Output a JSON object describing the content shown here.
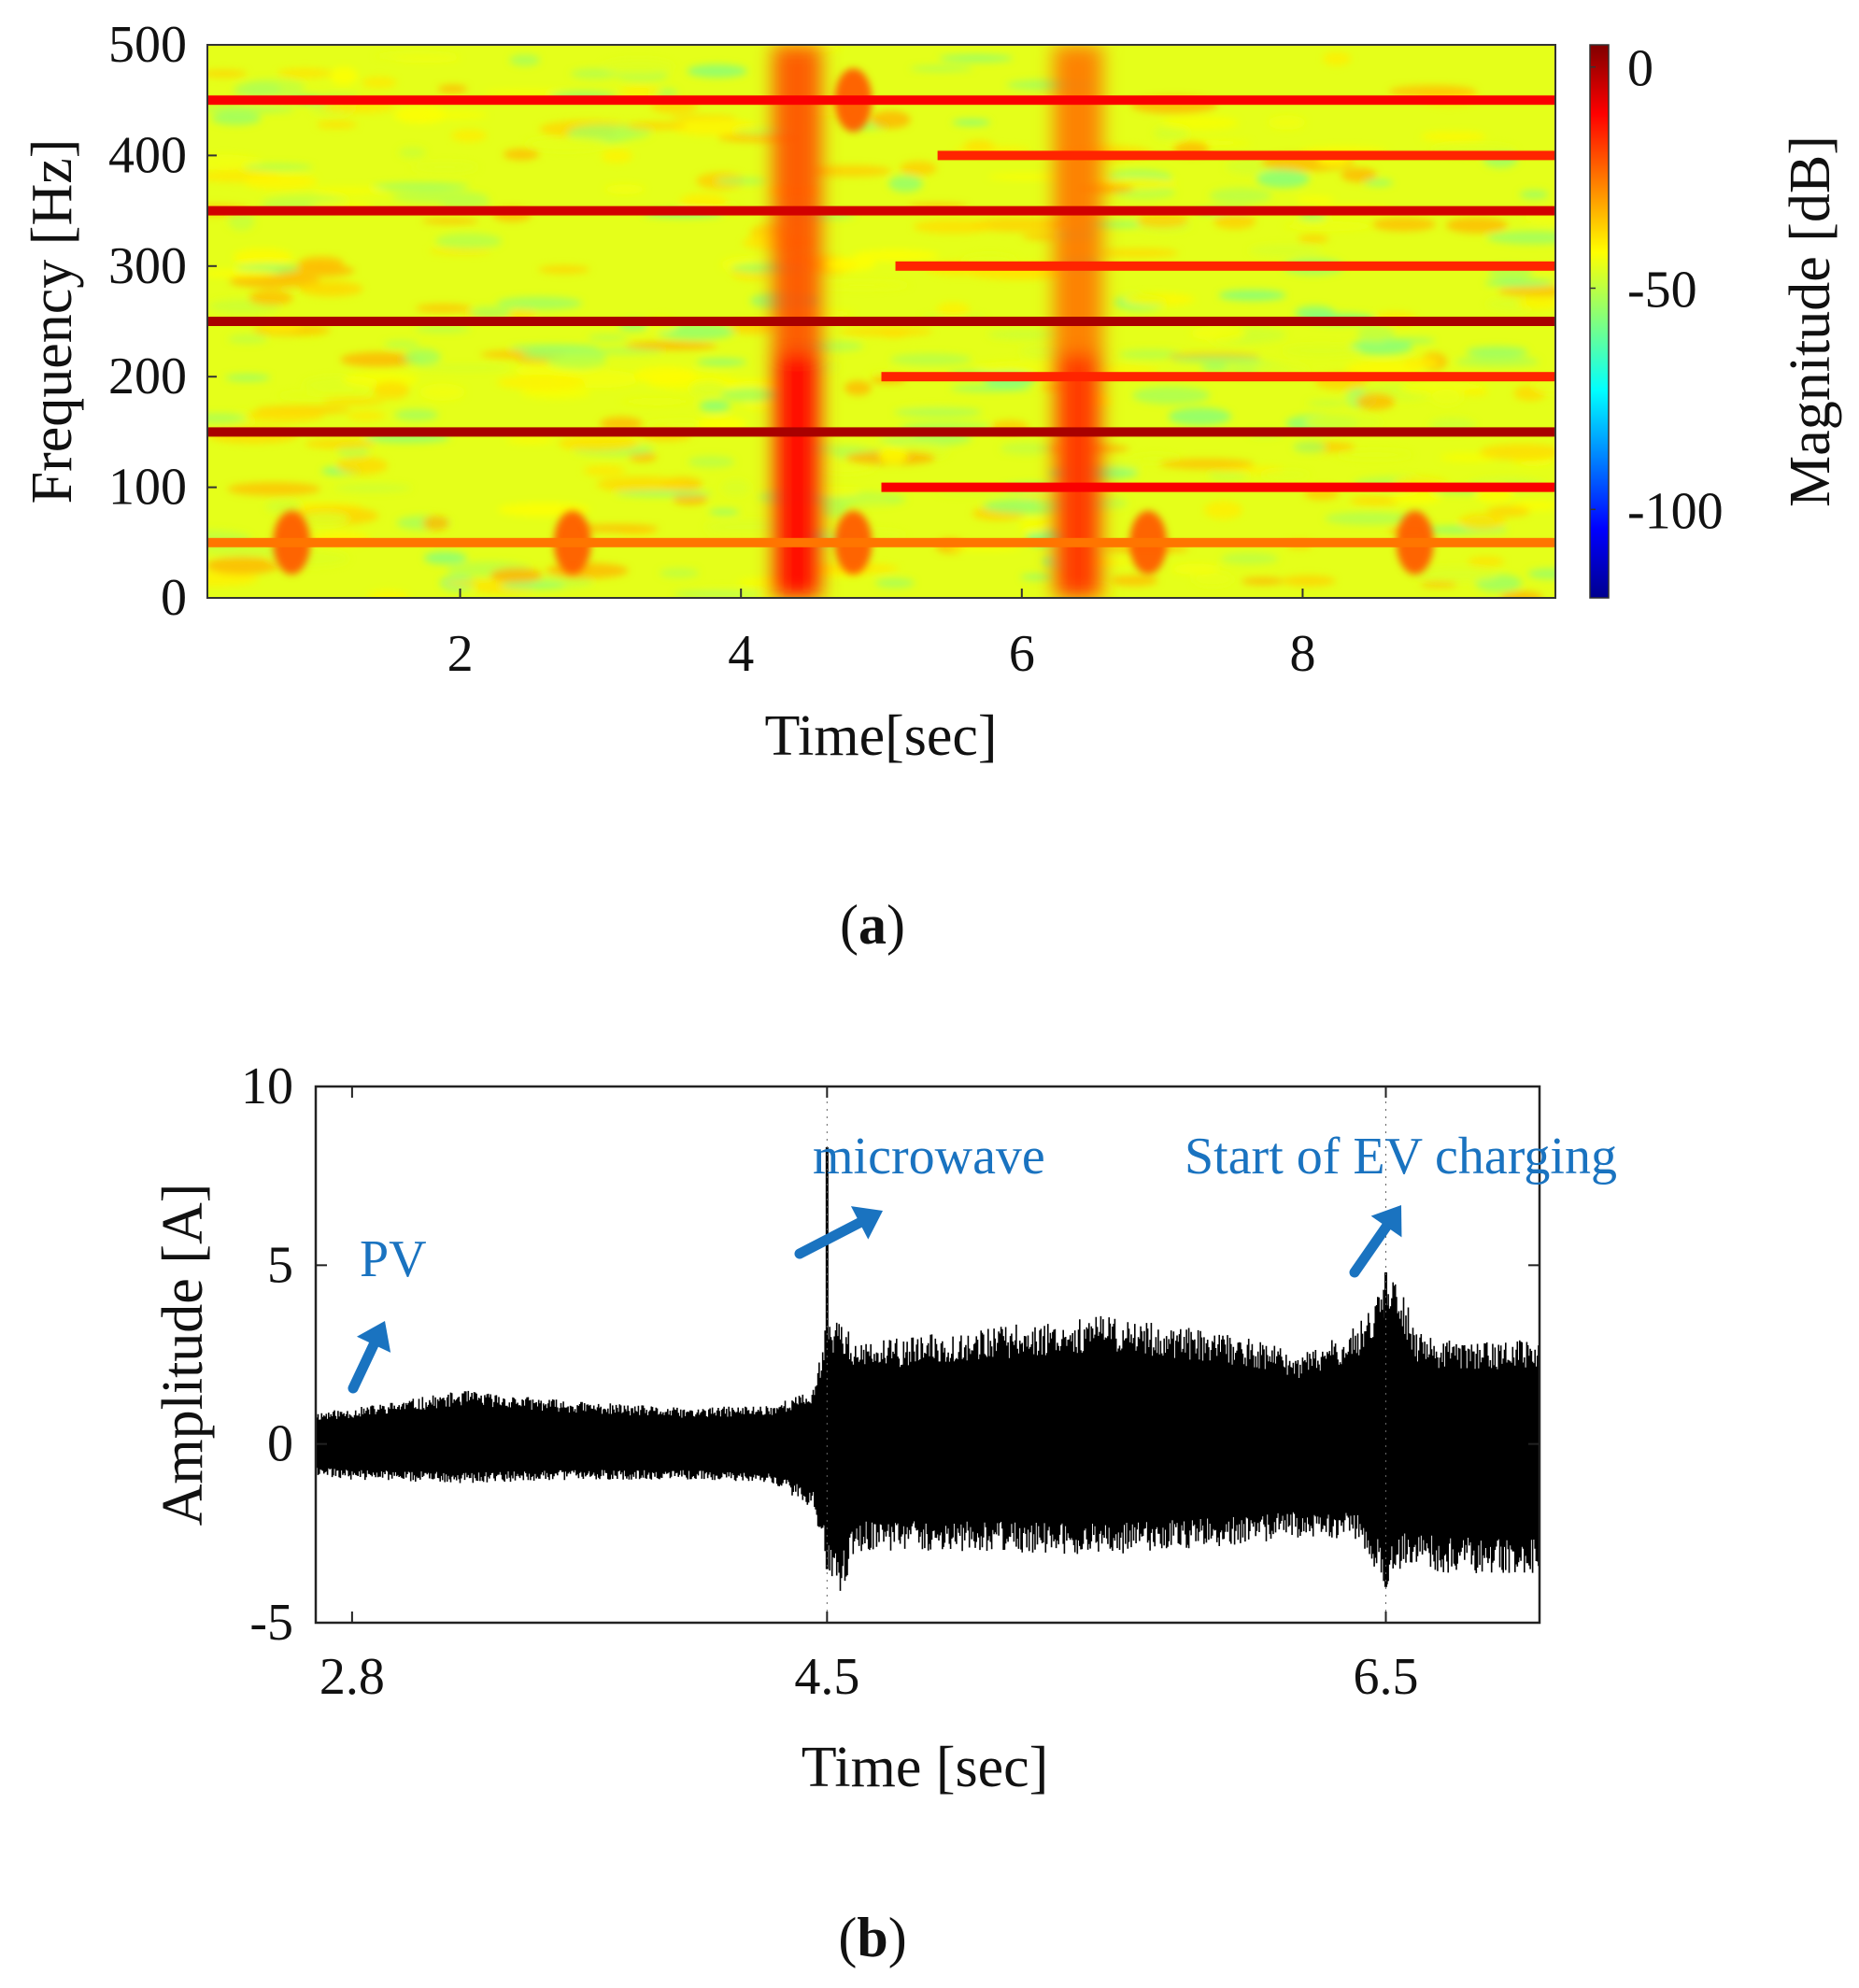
{
  "panels": {
    "a_label": "a",
    "b_label": "b"
  },
  "colors": {
    "annotation": "#1a73c0",
    "signal": "#000000",
    "colormap": "jet"
  },
  "chart_data": [
    {
      "type": "heatmap",
      "title": "",
      "xlabel": "Time[sec]",
      "ylabel": "Frequency [Hz]",
      "xlim": [
        0.2,
        9.8
      ],
      "ylim": [
        0,
        500
      ],
      "xticks": [
        2,
        4,
        6,
        8
      ],
      "yticks": [
        0,
        100,
        200,
        300,
        400,
        500
      ],
      "colorbar": {
        "label": "Magnitude [dB]",
        "range": [
          -120,
          5
        ],
        "ticks": [
          0,
          -50,
          -100
        ],
        "colormap": "jet"
      },
      "background_level_db": -45,
      "harmonic_bands": [
        {
          "freq_hz": 50,
          "t_start": 0.2,
          "t_end": 9.8,
          "level_db": -25
        },
        {
          "freq_hz": 100,
          "t_start": 5.0,
          "t_end": 9.8,
          "level_db": -10
        },
        {
          "freq_hz": 150,
          "t_start": 0.2,
          "t_end": 9.8,
          "level_db": 0
        },
        {
          "freq_hz": 200,
          "t_start": 5.0,
          "t_end": 9.8,
          "level_db": -15
        },
        {
          "freq_hz": 250,
          "t_start": 0.2,
          "t_end": 9.8,
          "level_db": 0
        },
        {
          "freq_hz": 300,
          "t_start": 5.1,
          "t_end": 9.8,
          "level_db": -15
        },
        {
          "freq_hz": 350,
          "t_start": 0.2,
          "t_end": 9.8,
          "level_db": -5
        },
        {
          "freq_hz": 400,
          "t_start": 5.4,
          "t_end": 9.8,
          "level_db": -15
        },
        {
          "freq_hz": 450,
          "t_start": 0.2,
          "t_end": 9.8,
          "level_db": -10
        }
      ],
      "transient_columns": [
        {
          "t": 4.4,
          "f_max_hz": 500,
          "level_db": -20
        },
        {
          "t": 6.4,
          "f_max_hz": 500,
          "level_db": -25
        }
      ],
      "blobs": [
        {
          "t": 0.8,
          "f_hz": 50
        },
        {
          "t": 2.8,
          "f_hz": 50
        },
        {
          "t": 4.8,
          "f_hz": 50
        },
        {
          "t": 6.9,
          "f_hz": 50
        },
        {
          "t": 8.8,
          "f_hz": 50
        },
        {
          "t": 4.8,
          "f_hz": 450
        }
      ]
    },
    {
      "type": "line",
      "title": "",
      "xlabel": "Time [sec]",
      "ylabel": "Amplitude [A]",
      "xlim": [
        2.67,
        7.05
      ],
      "ylim": [
        -5,
        10
      ],
      "xticks": [
        2.8,
        4.5,
        6.5
      ],
      "xtick_labels": [
        "2.8",
        "4.5",
        "6.5"
      ],
      "yticks": [
        -5,
        0,
        5,
        10
      ],
      "ytick_labels": [
        "-5",
        "0",
        "5",
        "10"
      ],
      "grid": false,
      "envelope": {
        "t": [
          2.67,
          2.8,
          3.2,
          3.6,
          4.0,
          4.3,
          4.45,
          4.5,
          4.55,
          4.6,
          5.0,
          5.5,
          6.0,
          6.2,
          6.4,
          6.5,
          6.55,
          6.6,
          6.7,
          7.05
        ],
        "upper": [
          0.9,
          1.0,
          1.5,
          1.2,
          1.0,
          1.1,
          1.5,
          3.5,
          3.6,
          2.8,
          3.2,
          3.6,
          3.0,
          2.5,
          3.3,
          4.8,
          4.8,
          3.2,
          2.9,
          2.9
        ],
        "lower": [
          -0.9,
          -1.0,
          -1.1,
          -1.0,
          -1.0,
          -1.1,
          -1.8,
          -3.5,
          -4.3,
          -3.0,
          -3.0,
          -3.1,
          -2.8,
          -2.6,
          -2.7,
          -4.0,
          -3.5,
          -3.4,
          -3.6,
          -3.7
        ]
      },
      "spikes": [
        {
          "t": 4.5,
          "value": 8.3
        },
        {
          "t": 6.5,
          "value": 4.8
        }
      ],
      "annotations": [
        {
          "text": "PV",
          "arrow_to_t": 2.8,
          "arrow_to_y": 1.7
        },
        {
          "text": "microwave",
          "arrow_to_t": 4.5,
          "arrow_to_y": 5.0
        },
        {
          "text": "Start of EV charging",
          "arrow_to_t": 6.5,
          "arrow_to_y": 4.8
        }
      ]
    }
  ]
}
